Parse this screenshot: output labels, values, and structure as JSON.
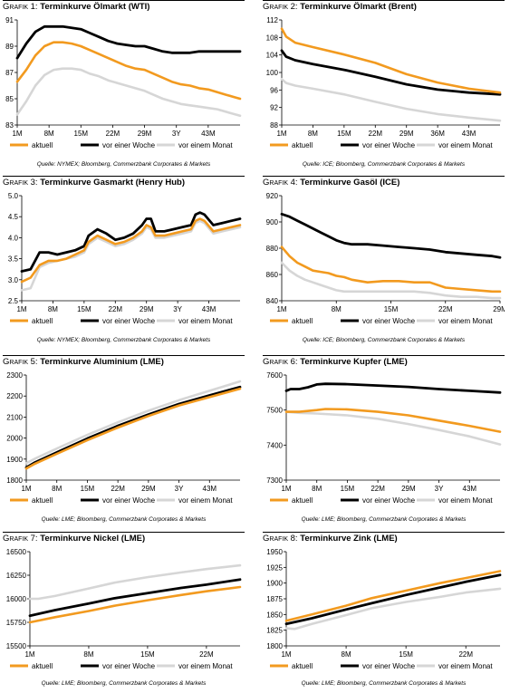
{
  "legend_labels": [
    "aktuell",
    "vor einer Woche",
    "vor einem Monat"
  ],
  "colors": {
    "aktuell": "#f29a1f",
    "woche": "#000000",
    "monat": "#d6d6d6"
  },
  "chart_data": [
    {
      "type": "line",
      "prefix": "Grafik 1:",
      "title": "Terminkurve Ölmarkt (WTI)",
      "source": "Quelle: NYMEX; Bloomberg, Commerzbank Corporates & Markets",
      "x_ticks": [
        "1M",
        "8M",
        "15M",
        "22M",
        "29M",
        "3Y",
        "43M"
      ],
      "x_range": [
        1,
        50
      ],
      "ylim": [
        83,
        91
      ],
      "y_ticks": [
        83,
        85,
        87,
        89,
        91
      ],
      "grid": false,
      "series": [
        {
          "name": "aktuell",
          "x": [
            1,
            3,
            5,
            7,
            9,
            11,
            13,
            15,
            17,
            19,
            21,
            23,
            25,
            27,
            29,
            31,
            33,
            35,
            37,
            39,
            41,
            43,
            45,
            47,
            49,
            50
          ],
          "values": [
            86.3,
            87.2,
            88.3,
            89.0,
            89.3,
            89.3,
            89.2,
            89.0,
            88.7,
            88.4,
            88.1,
            87.8,
            87.5,
            87.3,
            87.2,
            86.9,
            86.6,
            86.3,
            86.1,
            86.0,
            85.8,
            85.7,
            85.5,
            85.3,
            85.1,
            85.0
          ]
        },
        {
          "name": "vor einer Woche",
          "x": [
            1,
            3,
            5,
            7,
            9,
            11,
            13,
            15,
            17,
            19,
            21,
            23,
            25,
            27,
            29,
            31,
            33,
            35,
            37,
            39,
            41,
            43,
            45,
            47,
            49,
            50
          ],
          "values": [
            88.1,
            89.2,
            90.1,
            90.5,
            90.5,
            90.5,
            90.4,
            90.3,
            90.0,
            89.7,
            89.4,
            89.2,
            89.1,
            89.0,
            89.0,
            88.8,
            88.6,
            88.5,
            88.5,
            88.5,
            88.6,
            88.6,
            88.6,
            88.6,
            88.6,
            88.6
          ]
        },
        {
          "name": "vor einem Monat",
          "x": [
            1,
            3,
            5,
            7,
            9,
            11,
            13,
            15,
            17,
            19,
            21,
            23,
            25,
            27,
            29,
            31,
            33,
            35,
            37,
            39,
            41,
            43,
            45,
            47,
            49,
            50
          ],
          "values": [
            83.8,
            84.8,
            86.0,
            86.8,
            87.2,
            87.3,
            87.3,
            87.2,
            86.9,
            86.7,
            86.4,
            86.2,
            86.0,
            85.8,
            85.6,
            85.3,
            85.0,
            84.8,
            84.6,
            84.5,
            84.4,
            84.3,
            84.2,
            84.0,
            83.8,
            83.7
          ]
        }
      ]
    },
    {
      "type": "line",
      "prefix": "Grafik 2:",
      "title": "Terminkurve Ölmarkt (Brent)",
      "source": "Quelle: ICE; Bloomberg, Commerzbank Corporates & Markets",
      "x_ticks": [
        "1M",
        "8M",
        "15M",
        "22M",
        "29M",
        "36M",
        "43M"
      ],
      "x_range": [
        1,
        50
      ],
      "ylim": [
        88,
        112
      ],
      "y_ticks": [
        88,
        92,
        96,
        100,
        104,
        108,
        112
      ],
      "grid": false,
      "series": [
        {
          "name": "aktuell",
          "x": [
            1,
            2,
            4,
            8,
            15,
            22,
            29,
            36,
            43,
            50
          ],
          "values": [
            110.0,
            108.2,
            106.8,
            105.8,
            104.1,
            102.2,
            99.6,
            97.7,
            96.3,
            95.4
          ]
        },
        {
          "name": "vor einer Woche",
          "x": [
            1,
            2,
            4,
            8,
            15,
            22,
            29,
            36,
            43,
            50
          ],
          "values": [
            105.0,
            103.6,
            102.8,
            101.9,
            100.6,
            99.0,
            97.3,
            96.1,
            95.4,
            95.0
          ]
        },
        {
          "name": "vor einem Monat",
          "x": [
            1,
            2,
            4,
            8,
            15,
            22,
            29,
            36,
            43,
            50
          ],
          "values": [
            98.5,
            97.6,
            97.0,
            96.3,
            95.0,
            93.3,
            91.7,
            90.5,
            89.7,
            89.0
          ]
        }
      ]
    },
    {
      "type": "line",
      "prefix": "Grafik 3:",
      "title": "Terminkurve Gasmarkt (Henry Hub)",
      "source": "Quelle: NYMEX; Bloomberg, Commerzbank Corporates & Markets",
      "x_ticks": [
        "1M",
        "8M",
        "15M",
        "22M",
        "29M",
        "3Y",
        "43M"
      ],
      "x_range": [
        1,
        50
      ],
      "ylim": [
        2.5,
        5.0
      ],
      "y_ticks": [
        2.5,
        3.0,
        3.5,
        4.0,
        4.5,
        5.0
      ],
      "grid": false,
      "series": [
        {
          "name": "aktuell",
          "x": [
            1,
            3,
            5,
            7,
            9,
            11,
            13,
            15,
            16,
            18,
            20,
            22,
            24,
            26,
            28,
            29,
            30,
            31,
            33,
            35,
            37,
            39,
            40,
            41,
            42,
            44,
            46,
            48,
            50
          ],
          "values": [
            2.95,
            3.05,
            3.35,
            3.45,
            3.45,
            3.5,
            3.6,
            3.7,
            3.9,
            4.05,
            3.95,
            3.85,
            3.9,
            4.0,
            4.15,
            4.3,
            4.25,
            4.05,
            4.05,
            4.1,
            4.15,
            4.2,
            4.4,
            4.45,
            4.4,
            4.15,
            4.2,
            4.25,
            4.3
          ]
        },
        {
          "name": "vor einer Woche",
          "x": [
            1,
            3,
            5,
            7,
            9,
            11,
            13,
            15,
            16,
            18,
            20,
            22,
            24,
            26,
            28,
            29,
            30,
            31,
            33,
            35,
            37,
            39,
            40,
            41,
            42,
            44,
            46,
            48,
            50
          ],
          "values": [
            3.2,
            3.25,
            3.65,
            3.65,
            3.6,
            3.65,
            3.7,
            3.8,
            4.05,
            4.2,
            4.1,
            3.95,
            4.0,
            4.1,
            4.3,
            4.45,
            4.45,
            4.15,
            4.15,
            4.2,
            4.25,
            4.3,
            4.55,
            4.6,
            4.55,
            4.3,
            4.35,
            4.4,
            4.45
          ]
        },
        {
          "name": "vor einem Monat",
          "x": [
            1,
            3,
            5,
            7,
            9,
            11,
            13,
            15,
            16,
            18,
            20,
            22,
            24,
            26,
            28,
            29,
            30,
            31,
            33,
            35,
            37,
            39,
            40,
            41,
            42,
            44,
            46,
            48,
            50
          ],
          "values": [
            2.75,
            2.8,
            3.3,
            3.4,
            3.45,
            3.5,
            3.55,
            3.65,
            3.85,
            4.0,
            3.9,
            3.8,
            3.85,
            3.95,
            4.1,
            4.25,
            4.2,
            4.0,
            4.0,
            4.05,
            4.1,
            4.15,
            4.35,
            4.4,
            4.35,
            4.1,
            4.15,
            4.2,
            4.25
          ]
        }
      ]
    },
    {
      "type": "line",
      "prefix": "Grafik 4:",
      "title": "Terminkurve Gasöl (ICE)",
      "source": "Quelle: ICE; Bloomberg, Commerzbank Corporates & Markets",
      "x_ticks": [
        "1M",
        "8M",
        "15M",
        "22M",
        "29M"
      ],
      "x_range": [
        1,
        29
      ],
      "ylim": [
        840,
        920
      ],
      "y_ticks": [
        840,
        860,
        880,
        900,
        920
      ],
      "grid": false,
      "series": [
        {
          "name": "aktuell",
          "x": [
            1,
            2,
            3,
            4,
            5,
            6,
            7,
            8,
            9,
            10,
            12,
            14,
            16,
            18,
            20,
            22,
            24,
            26,
            28,
            29
          ],
          "values": [
            881,
            874,
            869,
            866,
            863,
            862,
            861,
            859,
            858,
            856,
            854,
            855,
            855,
            854,
            854,
            850,
            849,
            848,
            847,
            847
          ]
        },
        {
          "name": "vor einer Woche",
          "x": [
            1,
            2,
            3,
            4,
            5,
            6,
            7,
            8,
            9,
            10,
            12,
            14,
            16,
            18,
            20,
            22,
            24,
            26,
            28,
            29
          ],
          "values": [
            906,
            904,
            901,
            898,
            895,
            892,
            889,
            886,
            884,
            883,
            883,
            882,
            881,
            880,
            879,
            877,
            876,
            875,
            874,
            873
          ]
        },
        {
          "name": "vor einem Monat",
          "x": [
            1,
            2,
            3,
            4,
            5,
            6,
            7,
            8,
            9,
            10,
            12,
            14,
            16,
            18,
            20,
            22,
            24,
            26,
            28,
            29
          ],
          "values": [
            869,
            863,
            859,
            856,
            854,
            852,
            850,
            848,
            847,
            847,
            847,
            847,
            847,
            847,
            846,
            844,
            843,
            843,
            842,
            842
          ]
        }
      ]
    },
    {
      "type": "line",
      "prefix": "Grafik 5:",
      "title": "Terminkurve Aluminium (LME)",
      "source": "Quelle: LME; Bloomberg, Commerzbank Corporates & Markets",
      "x_ticks": [
        "1M",
        "8M",
        "15M",
        "22M",
        "29M",
        "3Y",
        "43M"
      ],
      "x_range": [
        1,
        50
      ],
      "ylim": [
        1800,
        2300
      ],
      "y_ticks": [
        1800,
        1900,
        2000,
        2100,
        2200,
        2300
      ],
      "grid": false,
      "series": [
        {
          "name": "aktuell",
          "x": [
            1,
            3,
            8,
            15,
            22,
            29,
            36,
            43,
            50
          ],
          "values": [
            1855,
            1878,
            1925,
            1990,
            2050,
            2105,
            2155,
            2195,
            2235
          ]
        },
        {
          "name": "vor einer Woche",
          "x": [
            1,
            3,
            8,
            15,
            22,
            29,
            36,
            43,
            50
          ],
          "values": [
            1860,
            1884,
            1932,
            1998,
            2058,
            2112,
            2162,
            2203,
            2243
          ]
        },
        {
          "name": "vor einem Monat",
          "x": [
            1,
            3,
            8,
            15,
            22,
            29,
            36,
            43,
            50
          ],
          "values": [
            1880,
            1902,
            1950,
            2015,
            2075,
            2130,
            2180,
            2225,
            2270
          ]
        }
      ]
    },
    {
      "type": "line",
      "prefix": "Grafik 6:",
      "title": "Terminkurve Kupfer (LME)",
      "source": "Quelle: LME; Bloomberg, Commerzbank Corporates & Markets",
      "x_ticks": [
        "1M",
        "8M",
        "15M",
        "22M",
        "29M",
        "3Y",
        "43M"
      ],
      "x_range": [
        1,
        50
      ],
      "ylim": [
        7300,
        7600
      ],
      "y_ticks": [
        7300,
        7400,
        7500,
        7600
      ],
      "grid": false,
      "series": [
        {
          "name": "aktuell",
          "x": [
            1,
            4,
            8,
            10,
            15,
            22,
            29,
            36,
            43,
            50
          ],
          "values": [
            7495,
            7495,
            7500,
            7503,
            7502,
            7495,
            7485,
            7470,
            7455,
            7438
          ]
        },
        {
          "name": "vor einer Woche",
          "x": [
            1,
            2,
            4,
            6,
            8,
            10,
            15,
            22,
            29,
            36,
            43,
            50
          ],
          "values": [
            7555,
            7560,
            7560,
            7565,
            7573,
            7575,
            7574,
            7570,
            7566,
            7560,
            7555,
            7550
          ]
        },
        {
          "name": "vor einem Monat",
          "x": [
            1,
            4,
            8,
            15,
            22,
            29,
            36,
            43,
            50
          ],
          "values": [
            7495,
            7492,
            7490,
            7485,
            7475,
            7460,
            7443,
            7425,
            7402
          ]
        }
      ]
    },
    {
      "type": "line",
      "prefix": "Grafik 7:",
      "title": "Terminkurve Nickel (LME)",
      "source": "Quelle: LME; Bloomberg, Commerzbank Corporates & Markets",
      "x_ticks": [
        "1M",
        "8M",
        "15M",
        "22M"
      ],
      "x_range": [
        1,
        26
      ],
      "ylim": [
        15500,
        16500
      ],
      "y_ticks": [
        15500,
        15750,
        16000,
        16250,
        16500
      ],
      "grid": false,
      "series": [
        {
          "name": "aktuell",
          "x": [
            1,
            4,
            8,
            11,
            15,
            19,
            22,
            26
          ],
          "values": [
            15750,
            15805,
            15870,
            15925,
            15985,
            16040,
            16080,
            16125
          ]
        },
        {
          "name": "vor einer Woche",
          "x": [
            1,
            4,
            8,
            11,
            15,
            19,
            22,
            26
          ],
          "values": [
            15820,
            15880,
            15950,
            16005,
            16060,
            16115,
            16150,
            16205
          ]
        },
        {
          "name": "vor einem Monat",
          "x": [
            1,
            2,
            4,
            8,
            11,
            15,
            19,
            22,
            26
          ],
          "values": [
            16000,
            16000,
            16030,
            16110,
            16170,
            16230,
            16280,
            16315,
            16355
          ]
        }
      ]
    },
    {
      "type": "line",
      "prefix": "Grafik 8:",
      "title": "Terminkurve Zink (LME)",
      "source": "Quelle: LME; Bloomberg, Commerzbank Corporates & Markets",
      "x_ticks": [
        "1M",
        "8M",
        "15M",
        "22M"
      ],
      "x_range": [
        1,
        26
      ],
      "ylim": [
        1800,
        1950
      ],
      "y_ticks": [
        1800,
        1825,
        1850,
        1875,
        1900,
        1925,
        1950
      ],
      "grid": false,
      "series": [
        {
          "name": "aktuell",
          "x": [
            1,
            4,
            8,
            11,
            15,
            19,
            22,
            26
          ],
          "values": [
            1840,
            1850,
            1864,
            1876,
            1888,
            1900,
            1908,
            1919
          ]
        },
        {
          "name": "vor einer Woche",
          "x": [
            1,
            4,
            8,
            11,
            15,
            19,
            22,
            26
          ],
          "values": [
            1835,
            1844,
            1858,
            1868,
            1881,
            1893,
            1902,
            1913
          ]
        },
        {
          "name": "vor einem Monat",
          "x": [
            1,
            2,
            4,
            8,
            11,
            15,
            19,
            22,
            26
          ],
          "values": [
            1828,
            1827,
            1835,
            1849,
            1860,
            1870,
            1878,
            1885,
            1891
          ]
        }
      ]
    }
  ]
}
